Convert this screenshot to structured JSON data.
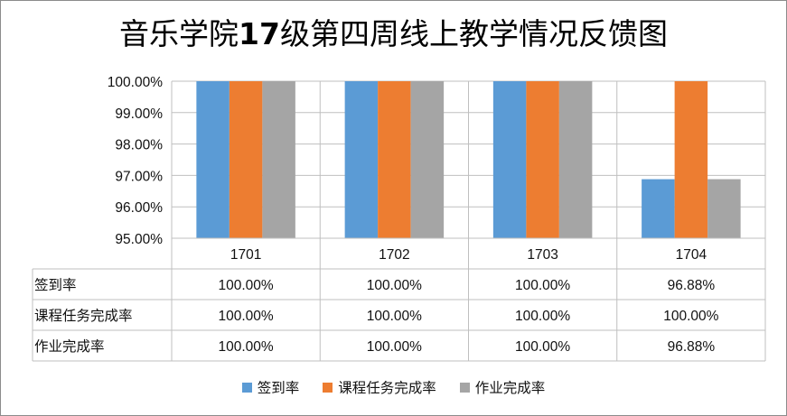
{
  "chart_data": {
    "type": "bar",
    "title_parts": [
      "音乐学院",
      "17",
      "级第四周线上教学情况反馈图"
    ],
    "categories": [
      "1701",
      "1702",
      "1703",
      "1704"
    ],
    "y_ticks": [
      "95.00%",
      "96.00%",
      "97.00%",
      "98.00%",
      "99.00%",
      "100.00%"
    ],
    "ylim": [
      95,
      100
    ],
    "grid": true,
    "legend_position": "bottom",
    "data_table": true,
    "series": [
      {
        "name": "签到率",
        "color": "#5b9bd5",
        "values": [
          100,
          100,
          100,
          96.88
        ],
        "labels": [
          "100.00%",
          "100.00%",
          "100.00%",
          "96.88%"
        ]
      },
      {
        "name": "课程任务完成率",
        "color": "#ed7d31",
        "values": [
          100,
          100,
          100,
          100
        ],
        "labels": [
          "100.00%",
          "100.00%",
          "100.00%",
          "100.00%"
        ]
      },
      {
        "name": "作业完成率",
        "color": "#a5a5a5",
        "values": [
          100,
          100,
          100,
          96.88
        ],
        "labels": [
          "100.00%",
          "100.00%",
          "100.00%",
          "96.88%"
        ]
      }
    ]
  }
}
